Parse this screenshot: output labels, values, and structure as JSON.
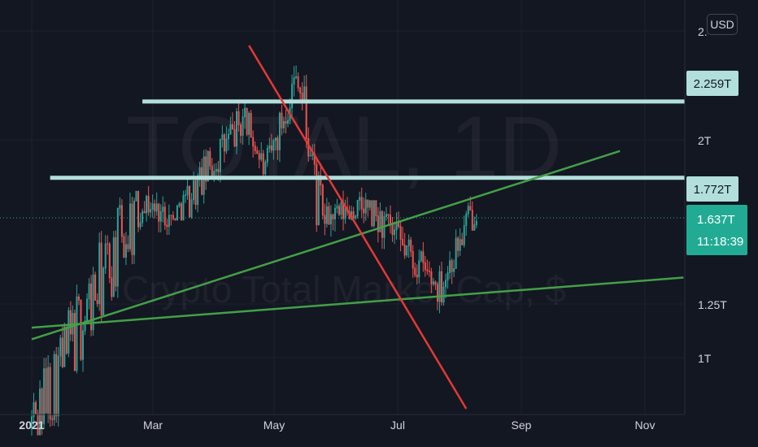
{
  "currency": "USD",
  "watermark": {
    "symbol": "TOTAL, 1D",
    "description": "Crypto Total Market Cap, $"
  },
  "price_tags": {
    "top_cut": "2.",
    "level_high": "2.259T",
    "level_mid": "1.772T",
    "last_price": "1.637T",
    "countdown": "11:18:39"
  },
  "colors": {
    "background": "#131722",
    "up": "#26a69a",
    "down": "#ef5350",
    "level_lines": "#b2dfdb",
    "support_trend": "#43a047",
    "resistance_trend": "#e53935",
    "last_price_tag": "#22ab94"
  },
  "chart_data": {
    "type": "candlestick",
    "title": "TOTAL, 1D",
    "subtitle": "Crypto Total Market Cap, $",
    "x_ticks": [
      "2021",
      "Mar",
      "May",
      "Jul",
      "Sep",
      "Nov"
    ],
    "y_ticks": [
      "1T",
      "1.25T",
      "2T",
      "2."
    ],
    "x_range": [
      "2021-01-01",
      "2021-11-30"
    ],
    "series": [
      {
        "period": "2021-01-01/2021-02-24",
        "open": 0.8,
        "close": 1.65,
        "high": 1.7,
        "low": 0.78
      },
      {
        "period": "2021-02-24/2021-03-12",
        "open": 1.65,
        "close": 1.55,
        "high": 1.73,
        "low": 1.42
      },
      {
        "period": "2021-03-12/2021-04-16",
        "open": 1.55,
        "close": 2.15,
        "high": 2.25,
        "low": 1.55
      },
      {
        "period": "2021-04-16/2021-04-26",
        "open": 2.15,
        "close": 1.8,
        "high": 2.2,
        "low": 1.65
      },
      {
        "period": "2021-04-26/2021-05-12",
        "open": 1.8,
        "close": 2.5,
        "high": 2.58,
        "low": 1.8
      },
      {
        "period": "2021-05-12/2021-05-23",
        "open": 2.5,
        "close": 1.55,
        "high": 2.52,
        "low": 1.18
      },
      {
        "period": "2021-05-23/2021-06-14",
        "open": 1.55,
        "close": 1.62,
        "high": 1.76,
        "low": 1.4
      },
      {
        "period": "2021-06-14/2021-07-20",
        "open": 1.62,
        "close": 1.25,
        "high": 1.65,
        "low": 1.15
      },
      {
        "period": "2021-07-20/2021-08-07",
        "open": 1.25,
        "close": 1.637,
        "high": 1.67,
        "low": 1.18
      }
    ],
    "horizontal_levels": [
      {
        "label": "2.259T",
        "value": 2.259,
        "from": "2021-02-24",
        "to": "2021-11-30"
      },
      {
        "label": "1.772T",
        "value": 1.772,
        "from": "2021-01-10",
        "to": "2021-11-30"
      }
    ],
    "trend_lines": [
      {
        "kind": "support",
        "from": {
          "x": "2021-01-01",
          "y": 1.06
        },
        "to": {
          "x": "2021-10-15",
          "y": 1.93
        }
      },
      {
        "kind": "support",
        "from": {
          "x": "2021-01-01",
          "y": 1.1
        },
        "to": {
          "x": "2021-11-15",
          "y": 1.29
        }
      },
      {
        "kind": "resistance",
        "from": {
          "x": "2021-04-17",
          "y": 2.7
        },
        "to": {
          "x": "2021-08-01",
          "y": 0.85
        }
      }
    ],
    "last_price": 1.637,
    "grid": true,
    "y_scale": "log"
  }
}
